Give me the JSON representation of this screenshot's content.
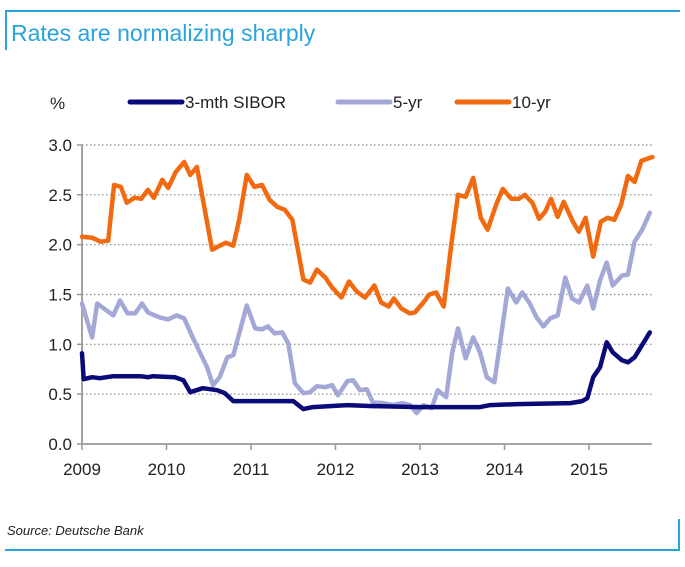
{
  "header": {
    "title": "Rates are normalizing sharply"
  },
  "footer": {
    "source": "Source: Deutsche Bank"
  },
  "chart_data": {
    "type": "line",
    "title": "Rates are normalizing sharply",
    "ylabel": "%",
    "xlabel": "",
    "xlim": [
      2009,
      2015.8
    ],
    "ylim": [
      0,
      3.0
    ],
    "x_ticks": [
      2009,
      2010,
      2011,
      2012,
      2013,
      2014,
      2015
    ],
    "y_ticks": [
      "0.0",
      "0.5",
      "1.0",
      "1.5",
      "2.0",
      "2.5",
      "3.0"
    ],
    "grid": "horizontal dotted",
    "legend": "top",
    "series": [
      {
        "name": "3-mth SIBOR",
        "color": "#0a0a78",
        "points": [
          [
            2009.0,
            0.91
          ],
          [
            2009.02,
            0.65
          ],
          [
            2009.12,
            0.67
          ],
          [
            2009.21,
            0.66
          ],
          [
            2009.37,
            0.68
          ],
          [
            2009.69,
            0.68
          ],
          [
            2009.78,
            0.67
          ],
          [
            2009.84,
            0.68
          ],
          [
            2010.1,
            0.67
          ],
          [
            2010.2,
            0.64
          ],
          [
            2010.28,
            0.52
          ],
          [
            2010.43,
            0.56
          ],
          [
            2010.6,
            0.54
          ],
          [
            2010.69,
            0.51
          ],
          [
            2010.79,
            0.43
          ],
          [
            2011.5,
            0.43
          ],
          [
            2011.62,
            0.35
          ],
          [
            2011.73,
            0.37
          ],
          [
            2012.14,
            0.39
          ],
          [
            2012.44,
            0.38
          ],
          [
            2013.0,
            0.37
          ],
          [
            2013.71,
            0.37
          ],
          [
            2013.83,
            0.39
          ],
          [
            2014.15,
            0.4
          ],
          [
            2014.78,
            0.41
          ],
          [
            2014.92,
            0.43
          ],
          [
            2014.98,
            0.46
          ],
          [
            2015.05,
            0.67
          ],
          [
            2015.13,
            0.77
          ],
          [
            2015.21,
            1.02
          ],
          [
            2015.28,
            0.92
          ],
          [
            2015.39,
            0.84
          ],
          [
            2015.46,
            0.82
          ],
          [
            2015.54,
            0.87
          ],
          [
            2015.72,
            1.12
          ]
        ]
      },
      {
        "name": "5-yr",
        "color": "#a3a8d6",
        "points": [
          [
            2009.0,
            1.41
          ],
          [
            2009.12,
            1.07
          ],
          [
            2009.18,
            1.41
          ],
          [
            2009.37,
            1.29
          ],
          [
            2009.45,
            1.44
          ],
          [
            2009.54,
            1.31
          ],
          [
            2009.63,
            1.31
          ],
          [
            2009.71,
            1.41
          ],
          [
            2009.78,
            1.32
          ],
          [
            2009.92,
            1.27
          ],
          [
            2010.02,
            1.25
          ],
          [
            2010.12,
            1.29
          ],
          [
            2010.21,
            1.26
          ],
          [
            2010.31,
            1.07
          ],
          [
            2010.4,
            0.91
          ],
          [
            2010.48,
            0.77
          ],
          [
            2010.55,
            0.59
          ],
          [
            2010.63,
            0.67
          ],
          [
            2010.72,
            0.87
          ],
          [
            2010.79,
            0.89
          ],
          [
            2010.95,
            1.39
          ],
          [
            2011.05,
            1.16
          ],
          [
            2011.13,
            1.15
          ],
          [
            2011.2,
            1.18
          ],
          [
            2011.28,
            1.11
          ],
          [
            2011.37,
            1.12
          ],
          [
            2011.44,
            1.01
          ],
          [
            2011.52,
            0.61
          ],
          [
            2011.62,
            0.51
          ],
          [
            2011.7,
            0.52
          ],
          [
            2011.78,
            0.58
          ],
          [
            2011.88,
            0.57
          ],
          [
            2011.96,
            0.59
          ],
          [
            2012.03,
            0.49
          ],
          [
            2012.14,
            0.63
          ],
          [
            2012.21,
            0.64
          ],
          [
            2012.29,
            0.54
          ],
          [
            2012.37,
            0.55
          ],
          [
            2012.44,
            0.42
          ],
          [
            2012.56,
            0.41
          ],
          [
            2012.68,
            0.39
          ],
          [
            2012.79,
            0.41
          ],
          [
            2012.88,
            0.39
          ],
          [
            2012.96,
            0.31
          ],
          [
            2013.04,
            0.39
          ],
          [
            2013.14,
            0.36
          ],
          [
            2013.21,
            0.54
          ],
          [
            2013.31,
            0.47
          ],
          [
            2013.38,
            0.91
          ],
          [
            2013.45,
            1.16
          ],
          [
            2013.54,
            0.86
          ],
          [
            2013.63,
            1.07
          ],
          [
            2013.71,
            0.92
          ],
          [
            2013.79,
            0.67
          ],
          [
            2013.88,
            0.62
          ],
          [
            2014.04,
            1.56
          ],
          [
            2014.14,
            1.42
          ],
          [
            2014.21,
            1.52
          ],
          [
            2014.3,
            1.41
          ],
          [
            2014.38,
            1.27
          ],
          [
            2014.46,
            1.18
          ],
          [
            2014.54,
            1.26
          ],
          [
            2014.63,
            1.29
          ],
          [
            2014.72,
            1.67
          ],
          [
            2014.8,
            1.46
          ],
          [
            2014.88,
            1.42
          ],
          [
            2014.98,
            1.59
          ],
          [
            2015.05,
            1.36
          ],
          [
            2015.13,
            1.64
          ],
          [
            2015.21,
            1.82
          ],
          [
            2015.28,
            1.59
          ],
          [
            2015.39,
            1.69
          ],
          [
            2015.46,
            1.7
          ],
          [
            2015.54,
            2.03
          ],
          [
            2015.63,
            2.15
          ],
          [
            2015.72,
            2.32
          ]
        ]
      },
      {
        "name": "10-yr",
        "color": "#f26a10",
        "points": [
          [
            2009.0,
            2.08
          ],
          [
            2009.12,
            2.07
          ],
          [
            2009.22,
            2.03
          ],
          [
            2009.31,
            2.04
          ],
          [
            2009.38,
            2.6
          ],
          [
            2009.46,
            2.58
          ],
          [
            2009.53,
            2.42
          ],
          [
            2009.62,
            2.47
          ],
          [
            2009.7,
            2.46
          ],
          [
            2009.78,
            2.55
          ],
          [
            2009.85,
            2.47
          ],
          [
            2009.95,
            2.65
          ],
          [
            2010.02,
            2.57
          ],
          [
            2010.11,
            2.73
          ],
          [
            2010.21,
            2.83
          ],
          [
            2010.28,
            2.7
          ],
          [
            2010.36,
            2.78
          ],
          [
            2010.54,
            1.95
          ],
          [
            2010.63,
            1.99
          ],
          [
            2010.7,
            2.02
          ],
          [
            2010.79,
            1.99
          ],
          [
            2010.86,
            2.25
          ],
          [
            2010.95,
            2.7
          ],
          [
            2011.04,
            2.58
          ],
          [
            2011.13,
            2.6
          ],
          [
            2011.22,
            2.45
          ],
          [
            2011.31,
            2.38
          ],
          [
            2011.4,
            2.35
          ],
          [
            2011.49,
            2.25
          ],
          [
            2011.62,
            1.65
          ],
          [
            2011.7,
            1.62
          ],
          [
            2011.78,
            1.75
          ],
          [
            2011.88,
            1.67
          ],
          [
            2011.96,
            1.57
          ],
          [
            2012.07,
            1.47
          ],
          [
            2012.16,
            1.63
          ],
          [
            2012.25,
            1.53
          ],
          [
            2012.35,
            1.47
          ],
          [
            2012.46,
            1.59
          ],
          [
            2012.54,
            1.42
          ],
          [
            2012.63,
            1.38
          ],
          [
            2012.69,
            1.46
          ],
          [
            2012.78,
            1.36
          ],
          [
            2012.88,
            1.31
          ],
          [
            2012.94,
            1.32
          ],
          [
            2013.04,
            1.42
          ],
          [
            2013.11,
            1.5
          ],
          [
            2013.19,
            1.52
          ],
          [
            2013.28,
            1.38
          ],
          [
            2013.37,
            2.0
          ],
          [
            2013.45,
            2.5
          ],
          [
            2013.54,
            2.48
          ],
          [
            2013.63,
            2.67
          ],
          [
            2013.72,
            2.27
          ],
          [
            2013.8,
            2.15
          ],
          [
            2013.9,
            2.4
          ],
          [
            2013.98,
            2.56
          ],
          [
            2014.08,
            2.46
          ],
          [
            2014.17,
            2.46
          ],
          [
            2014.24,
            2.5
          ],
          [
            2014.33,
            2.42
          ],
          [
            2014.41,
            2.26
          ],
          [
            2014.48,
            2.33
          ],
          [
            2014.55,
            2.46
          ],
          [
            2014.63,
            2.28
          ],
          [
            2014.7,
            2.43
          ],
          [
            2014.81,
            2.23
          ],
          [
            2014.88,
            2.13
          ],
          [
            2014.96,
            2.27
          ],
          [
            2015.05,
            1.88
          ],
          [
            2015.14,
            2.23
          ],
          [
            2015.22,
            2.27
          ],
          [
            2015.3,
            2.25
          ],
          [
            2015.38,
            2.4
          ],
          [
            2015.46,
            2.69
          ],
          [
            2015.54,
            2.63
          ],
          [
            2015.62,
            2.84
          ],
          [
            2015.75,
            2.88
          ]
        ]
      }
    ]
  }
}
